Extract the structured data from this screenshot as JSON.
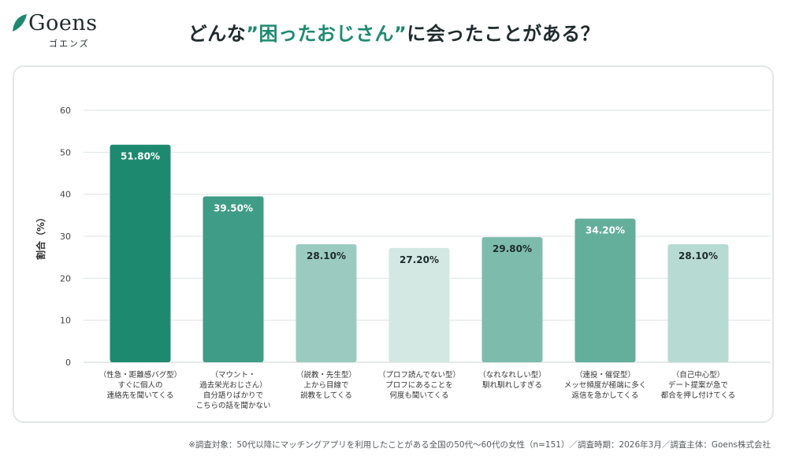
{
  "brand": {
    "name": "Goens",
    "katakana": "ゴエンズ"
  },
  "header": {
    "title_prefix": "どんな",
    "title_highlight": "”困ったおじさん”",
    "title_suffix": "に会ったことがある？"
  },
  "footnote": "※調査対象：50代以降にマッチングアプリを利用したことがある全国の50代〜60代の女性（n=151）／調査時期：2026年3月／調査主体：Goens株式会社",
  "colors": {
    "accent": "#1d8a70",
    "grid": "#dde6e4",
    "axis_text": "#444444"
  },
  "chart_data": {
    "type": "bar",
    "ylabel": "割合（%）",
    "ylim": [
      0,
      60
    ],
    "yticks": [
      0,
      10,
      20,
      30,
      40,
      50,
      60
    ],
    "grid": true,
    "categories": [
      [
        "（性急・距離感バグ型）",
        "すぐに個人の",
        "連絡先を聞いてくる"
      ],
      [
        "（マウント・",
        "過去栄光おじさん）",
        "自分語りばかりで",
        "こちらの話を聞かない"
      ],
      [
        "（説教・先生型）",
        "上から目線で",
        "説教をしてくる"
      ],
      [
        "（プロフ読んでない型）",
        "プロフにあることを",
        "何度も聞いてくる"
      ],
      [
        "（なれなれしい型）",
        "馴れ馴れしすぎる"
      ],
      [
        "（連投・催促型）",
        "メッセ頻度が極端に多く",
        "返信を急かしてくる"
      ],
      [
        "（自己中心型）",
        "デート提案が急で",
        "都合を押し付けてくる"
      ]
    ],
    "values": [
      51.8,
      39.5,
      28.1,
      27.2,
      29.8,
      34.2,
      28.1
    ],
    "data_labels": [
      "51.80%",
      "39.50%",
      "28.10%",
      "27.20%",
      "29.80%",
      "34.20%",
      "28.10%"
    ],
    "bar_colors": [
      "#1d8a70",
      "#3f9c87",
      "#9bcbc0",
      "#d3e8e3",
      "#7dbcad",
      "#64ae9c",
      "#b7dbd2"
    ],
    "label_colors": [
      "#ffffff",
      "#ffffff",
      "#1f2a2c",
      "#1f2a2c",
      "#1f2a2c",
      "#ffffff",
      "#1f2a2c"
    ]
  }
}
